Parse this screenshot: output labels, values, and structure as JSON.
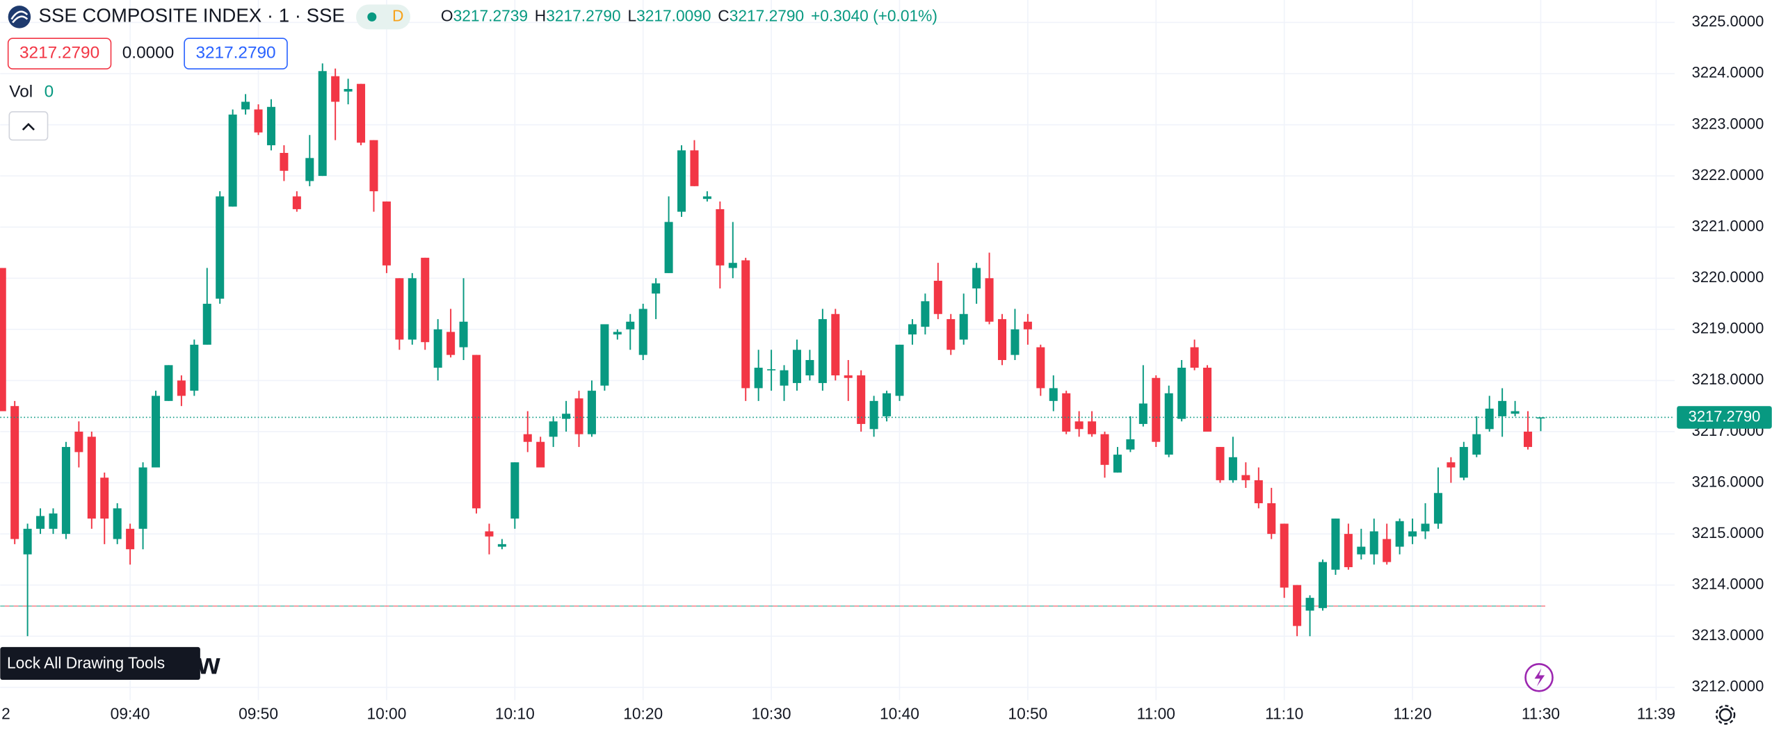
{
  "chart_data": {
    "type": "candlestick",
    "title": "SSE COMPOSITE INDEX · 1 · SSE",
    "badge": "D",
    "ohlc_legend": [
      {
        "key": "O",
        "value": "3217.2739"
      },
      {
        "key": "H",
        "value": "3217.2790"
      },
      {
        "key": "L",
        "value": "3217.0090"
      },
      {
        "key": "C",
        "value": "3217.2790"
      }
    ],
    "change": "+0.3040 (+0.01%)",
    "inputs": [
      "3217.2790",
      "0.0000",
      "3217.2790"
    ],
    "volume_label": "Vol",
    "volume_value": "0",
    "tooltip": "Lock All Drawing Tools",
    "watermark_fragment": "ew",
    "last_price_label": "3217.2790",
    "x_end_label": "11:39",
    "up_color": "#089981",
    "down_color": "#f23645",
    "grid": true,
    "reference_level": 3213.59,
    "ylim": [
      3211.75,
      3225.44
    ],
    "yticks": [
      {
        "value": 3225,
        "label": "3225.0000"
      },
      {
        "value": 3224,
        "label": "3224.0000"
      },
      {
        "value": 3223,
        "label": "3223.0000"
      },
      {
        "value": 3222,
        "label": "3222.0000"
      },
      {
        "value": 3221,
        "label": "3221.0000"
      },
      {
        "value": 3220,
        "label": "3220.0000"
      },
      {
        "value": 3219,
        "label": "3219.0000"
      },
      {
        "value": 3218,
        "label": "3218.0000"
      },
      {
        "value": 3217,
        "label": "3217.0000"
      },
      {
        "value": 3216,
        "label": "3216.0000"
      },
      {
        "value": 3215,
        "label": "3215.0000"
      },
      {
        "value": 3214,
        "label": "3214.0000"
      },
      {
        "value": 3213,
        "label": "3213.0000"
      },
      {
        "value": 3212,
        "label": "3212.0000"
      }
    ],
    "categories": [
      "2",
      null,
      null,
      null,
      null,
      null,
      null,
      null,
      null,
      null,
      "09:40",
      null,
      null,
      null,
      null,
      null,
      null,
      null,
      null,
      null,
      "09:50",
      null,
      null,
      null,
      null,
      null,
      null,
      null,
      null,
      null,
      "10:00",
      null,
      null,
      null,
      null,
      null,
      null,
      null,
      null,
      null,
      "10:10",
      null,
      null,
      null,
      null,
      null,
      null,
      null,
      null,
      null,
      "10:20",
      null,
      null,
      null,
      null,
      null,
      null,
      null,
      null,
      null,
      "10:30",
      null,
      null,
      null,
      null,
      null,
      null,
      null,
      null,
      null,
      "10:40",
      null,
      null,
      null,
      null,
      null,
      null,
      null,
      null,
      null,
      "10:50",
      null,
      null,
      null,
      null,
      null,
      null,
      null,
      null,
      null,
      "11:00",
      null,
      null,
      null,
      null,
      null,
      null,
      null,
      null,
      null,
      "11:10",
      null,
      null,
      null,
      null,
      null,
      null,
      null,
      null,
      null,
      "11:20",
      null,
      null,
      null,
      null,
      null,
      null,
      null,
      null,
      null,
      "11:30"
    ],
    "open": [
      3220.2,
      3217.5,
      3214.6,
      3215.1,
      3215.1,
      3215.0,
      3217.0,
      3216.9,
      3216.1,
      3214.9,
      3215.1,
      3215.1,
      3216.3,
      3217.6,
      3218.0,
      3217.8,
      3218.7,
      3219.6,
      3221.4,
      3223.3,
      3223.3,
      3222.6,
      3222.45,
      3221.6,
      3221.9,
      3222.0,
      3223.95,
      3223.65,
      3223.8,
      3222.7,
      3221.5,
      3220.0,
      3218.8,
      3220.4,
      3218.25,
      3218.95,
      3218.65,
      3218.5,
      3215.05,
      3214.75,
      3215.3,
      3216.95,
      3216.8,
      3216.9,
      3217.25,
      3217.65,
      3216.95,
      3217.9,
      3218.9,
      3219.0,
      3218.5,
      3219.7,
      3220.1,
      3221.3,
      3222.5,
      3221.55,
      3221.35,
      3220.2,
      3220.35,
      3217.85,
      3218.2,
      3217.9,
      3217.95,
      3218.1,
      3217.95,
      3219.3,
      3218.1,
      3218.1,
      3217.05,
      3217.3,
      3217.7,
      3218.9,
      3219.05,
      3219.95,
      3219.2,
      3218.8,
      3219.8,
      3220.0,
      3219.2,
      3218.5,
      3219.15,
      3218.65,
      3217.6,
      3217.75,
      3217.2,
      3217.2,
      3216.95,
      3216.2,
      3216.65,
      3217.15,
      3218.05,
      3216.55,
      3217.25,
      3218.65,
      3218.25,
      3216.7,
      3216.05,
      3216.15,
      3216.05,
      3215.6,
      3215.2,
      3214.0,
      3213.5,
      3213.55,
      3214.3,
      3215.0,
      3214.6,
      3214.6,
      3214.9,
      3214.75,
      3214.95,
      3215.05,
      3215.2,
      3216.4,
      3216.1,
      3216.55,
      3217.05,
      3217.3,
      3217.35,
      3217.0,
      3217.2739
    ],
    "high": [
      3220.2,
      3217.6,
      3215.2,
      3215.5,
      3215.5,
      3216.8,
      3217.2,
      3217.0,
      3216.2,
      3215.6,
      3215.2,
      3216.4,
      3217.8,
      3218.3,
      3218.1,
      3218.8,
      3220.2,
      3221.7,
      3223.3,
      3223.6,
      3223.4,
      3223.5,
      3222.6,
      3221.7,
      3222.8,
      3224.2,
      3224.1,
      3223.9,
      3223.8,
      3222.7,
      3221.5,
      3220.0,
      3220.1,
      3220.4,
      3219.2,
      3219.4,
      3220.0,
      3218.5,
      3215.2,
      3214.9,
      3216.4,
      3217.4,
      3216.9,
      3217.3,
      3217.6,
      3217.8,
      3218.0,
      3219.1,
      3219.0,
      3219.3,
      3219.5,
      3220.0,
      3221.6,
      3222.6,
      3222.7,
      3221.7,
      3221.5,
      3221.1,
      3220.4,
      3218.6,
      3218.6,
      3218.3,
      3218.8,
      3218.6,
      3219.4,
      3219.4,
      3218.4,
      3218.2,
      3217.7,
      3217.8,
      3218.7,
      3219.2,
      3219.7,
      3220.3,
      3219.3,
      3219.7,
      3220.3,
      3220.5,
      3219.3,
      3219.4,
      3219.3,
      3218.7,
      3218.1,
      3217.8,
      3217.4,
      3217.4,
      3217.0,
      3216.7,
      3217.3,
      3218.3,
      3218.1,
      3217.9,
      3218.4,
      3218.8,
      3218.3,
      3216.7,
      3216.9,
      3216.4,
      3216.3,
      3215.9,
      3215.2,
      3214.0,
      3213.8,
      3214.5,
      3215.3,
      3215.2,
      3215.1,
      3215.3,
      3215.2,
      3215.3,
      3215.3,
      3215.6,
      3216.3,
      3216.5,
      3216.8,
      3217.3,
      3217.7,
      3217.85,
      3217.6,
      3217.4,
      3217.279
    ],
    "low": [
      3217.4,
      3214.8,
      3213.0,
      3215.0,
      3215.0,
      3214.9,
      3216.3,
      3215.1,
      3214.8,
      3214.8,
      3214.4,
      3214.7,
      3216.3,
      3217.6,
      3217.5,
      3217.7,
      3218.7,
      3219.5,
      3221.4,
      3223.2,
      3222.8,
      3222.5,
      3221.9,
      3221.3,
      3221.8,
      3222.0,
      3222.7,
      3223.4,
      3222.6,
      3221.3,
      3220.1,
      3218.6,
      3218.7,
      3218.6,
      3218.0,
      3218.45,
      3218.4,
      3215.4,
      3214.6,
      3214.7,
      3215.1,
      3216.6,
      3216.3,
      3216.7,
      3217.0,
      3216.7,
      3216.9,
      3217.8,
      3218.8,
      3218.6,
      3218.4,
      3219.2,
      3220.1,
      3221.2,
      3221.8,
      3221.5,
      3219.8,
      3220.0,
      3217.6,
      3217.6,
      3217.8,
      3217.6,
      3217.8,
      3218.0,
      3217.8,
      3218.0,
      3217.6,
      3217.0,
      3216.9,
      3217.2,
      3217.6,
      3218.7,
      3218.9,
      3219.2,
      3218.5,
      3218.7,
      3219.5,
      3219.1,
      3218.3,
      3218.4,
      3218.7,
      3217.7,
      3217.4,
      3216.95,
      3216.9,
      3216.9,
      3216.1,
      3216.2,
      3216.6,
      3217.1,
      3216.7,
      3216.5,
      3217.2,
      3218.2,
      3217.0,
      3216.0,
      3216.0,
      3215.9,
      3215.5,
      3214.9,
      3213.75,
      3213.0,
      3213.0,
      3213.5,
      3214.2,
      3214.3,
      3214.5,
      3214.4,
      3214.4,
      3214.6,
      3214.8,
      3214.9,
      3215.1,
      3216.0,
      3216.05,
      3216.5,
      3217.0,
      3216.9,
      3217.3,
      3216.65,
      3217.009
    ],
    "close": [
      3217.4,
      3214.9,
      3215.1,
      3215.35,
      3215.4,
      3216.7,
      3216.6,
      3215.3,
      3215.3,
      3215.5,
      3214.7,
      3216.3,
      3217.7,
      3218.3,
      3217.7,
      3218.7,
      3219.5,
      3221.6,
      3223.2,
      3223.45,
      3222.85,
      3223.35,
      3222.1,
      3221.35,
      3222.35,
      3224.05,
      3223.45,
      3223.7,
      3222.65,
      3221.7,
      3220.25,
      3218.8,
      3220.0,
      3218.75,
      3219.0,
      3218.5,
      3219.15,
      3215.5,
      3214.95,
      3214.8,
      3216.4,
      3216.8,
      3216.3,
      3217.2,
      3217.35,
      3216.95,
      3217.8,
      3219.1,
      3218.95,
      3219.15,
      3219.4,
      3219.9,
      3221.1,
      3222.5,
      3221.8,
      3221.6,
      3220.25,
      3220.3,
      3217.85,
      3218.25,
      3218.22,
      3218.2,
      3218.6,
      3218.4,
      3219.2,
      3218.1,
      3218.05,
      3217.15,
      3217.6,
      3217.75,
      3218.7,
      3219.1,
      3219.55,
      3219.3,
      3218.6,
      3219.3,
      3220.2,
      3219.15,
      3218.4,
      3219.0,
      3219.0,
      3217.85,
      3217.85,
      3217.0,
      3217.05,
      3216.95,
      3216.35,
      3216.55,
      3216.85,
      3217.55,
      3216.8,
      3217.75,
      3218.25,
      3218.25,
      3217.0,
      3216.05,
      3216.5,
      3216.05,
      3215.6,
      3215.0,
      3213.95,
      3213.2,
      3213.75,
      3214.45,
      3215.3,
      3214.35,
      3214.75,
      3215.05,
      3214.45,
      3215.25,
      3215.05,
      3215.2,
      3215.8,
      3216.3,
      3216.7,
      3216.95,
      3217.45,
      3217.6,
      3217.4,
      3216.7,
      3217.279
    ]
  }
}
